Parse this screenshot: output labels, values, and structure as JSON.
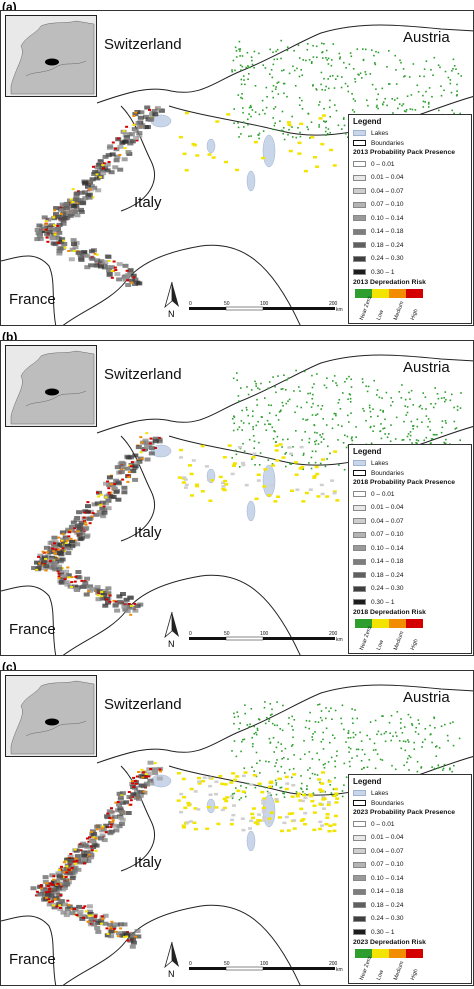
{
  "colors": {
    "lakes": "#c9d6ea",
    "near_zero": "#2e9e2e",
    "low": "#f2e400",
    "medium": "#f28c00",
    "high": "#d40000"
  },
  "countries": [
    "Switzerland",
    "Austria",
    "Italy",
    "France"
  ],
  "legend_common": {
    "title": "Legend",
    "lakes": "Lakes",
    "boundaries": "Boundaries",
    "classes": [
      "0 – 0.01",
      "0.01 – 0.04",
      "0.04 – 0.07",
      "0.07 – 0.10",
      "0.10 – 0.14",
      "0.14 – 0.18",
      "0.18 – 0.24",
      "0.24 – 0.30",
      "0.30 – 1"
    ],
    "class_colors": [
      "#ffffff",
      "#e8e8e8",
      "#cfcfcf",
      "#b4b4b4",
      "#9a9a9a",
      "#7d7d7d",
      "#5f5f5f",
      "#3f3f3f",
      "#1c1c1c"
    ],
    "risk_labels": [
      "Near Zero",
      "Low",
      "Medium",
      "High"
    ]
  },
  "scale_bar": {
    "ticks": [
      "0",
      "50",
      "100",
      "200"
    ],
    "unit": "km"
  },
  "north": "N",
  "panels": [
    {
      "letter": "(a)",
      "presence_title": "2013 Probability Pack Presence",
      "risk_title": "2013 Depredation Risk"
    },
    {
      "letter": "(b)",
      "presence_title": "2018 Probability Pack Presence",
      "risk_title": "2018 Depredation Risk"
    },
    {
      "letter": "(c)",
      "presence_title": "2023 Probability Pack Presence",
      "risk_title": "2023 Depredation Risk"
    }
  ]
}
